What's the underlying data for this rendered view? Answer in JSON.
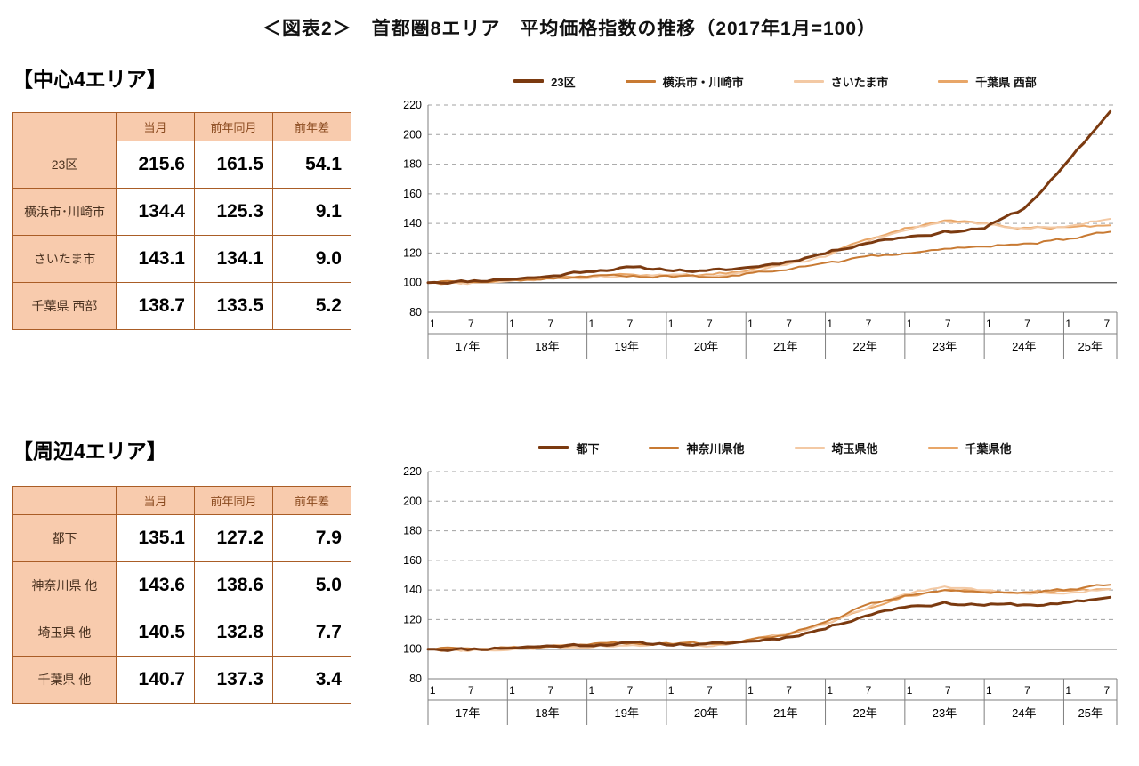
{
  "title": "＜図表2＞　首都圏8エリア　平均価格指数の推移（2017年1月=100）",
  "colors": {
    "table_fill": "#f8cbad",
    "table_border": "#aa5d26",
    "series_dark_brown": "#7b3a10",
    "series_orange": "#c87a33",
    "series_light_peach": "#f3c9a4",
    "series_medium_orange": "#e8a668"
  },
  "sections": [
    {
      "heading": "【中心4エリア】",
      "table": {
        "headers": [
          "当月",
          "前年同月",
          "前年差"
        ],
        "rows": [
          {
            "label": "23区",
            "values": [
              "215.6",
              "161.5",
              "54.1"
            ]
          },
          {
            "label": "横浜市･川崎市",
            "values": [
              "134.4",
              "125.3",
              "9.1"
            ]
          },
          {
            "label": "さいたま市",
            "values": [
              "143.1",
              "134.1",
              "9.0"
            ]
          },
          {
            "label": "千葉県 西部",
            "values": [
              "138.7",
              "133.5",
              "5.2"
            ]
          }
        ]
      }
    },
    {
      "heading": "【周辺4エリア】",
      "table": {
        "headers": [
          "当月",
          "前年同月",
          "前年差"
        ],
        "rows": [
          {
            "label": "都下",
            "values": [
              "135.1",
              "127.2",
              "7.9"
            ]
          },
          {
            "label": "神奈川県 他",
            "values": [
              "143.6",
              "138.6",
              "5.0"
            ]
          },
          {
            "label": "埼玉県 他",
            "values": [
              "140.5",
              "132.8",
              "7.7"
            ]
          },
          {
            "label": "千葉県 他",
            "values": [
              "140.7",
              "137.3",
              "3.4"
            ]
          }
        ]
      }
    }
  ],
  "chart_data": [
    {
      "type": "line",
      "title": "中心4エリア 平均価格指数の推移（2017年1月=100）",
      "ylim": [
        80,
        220
      ],
      "yticks": [
        80,
        100,
        120,
        140,
        160,
        180,
        200,
        220
      ],
      "baseline": 100,
      "grid": "dashed-horizontal",
      "legend_position": "top",
      "x_months_total": 104,
      "x_month_ticks": [
        "1",
        "7"
      ],
      "x_year_labels": [
        "17年",
        "18年",
        "19年",
        "20年",
        "21年",
        "22年",
        "23年",
        "24年",
        "25年"
      ],
      "control_months": [
        0,
        6,
        12,
        18,
        24,
        30,
        36,
        42,
        48,
        54,
        60,
        66,
        72,
        78,
        84,
        90,
        96,
        103
      ],
      "control_dates": [
        "2017-01",
        "2017-07",
        "2018-01",
        "2018-07",
        "2019-01",
        "2019-07",
        "2020-01",
        "2020-07",
        "2021-01",
        "2021-07",
        "2022-01",
        "2022-07",
        "2023-01",
        "2023-07",
        "2024-01",
        "2024-07",
        "2025-01",
        "2025-08"
      ],
      "series": [
        {
          "name": "23区",
          "color": "#7b3a10",
          "width": 3,
          "values": [
            100,
            101,
            102.5,
            104,
            108,
            110,
            109,
            107.5,
            110,
            114,
            120,
            127,
            131,
            134,
            137,
            150,
            178,
            215.6
          ]
        },
        {
          "name": "横浜市・川崎市",
          "color": "#c87a33",
          "width": 2,
          "values": [
            100,
            100,
            101.5,
            103,
            104.5,
            105,
            104.5,
            104,
            106,
            109,
            113,
            117,
            119.5,
            122,
            124,
            126,
            129,
            134.4
          ]
        },
        {
          "name": "さいたま市",
          "color": "#f3c9a4",
          "width": 2,
          "values": [
            100,
            99.5,
            101,
            102.5,
            104,
            105,
            105,
            104.5,
            107,
            111,
            118,
            128,
            136,
            141,
            140,
            136,
            138,
            143.1
          ]
        },
        {
          "name": "千葉県 西部",
          "color": "#e8a668",
          "width": 2,
          "values": [
            100,
            100,
            101.5,
            103,
            104.5,
            105.5,
            105,
            105,
            108,
            113,
            119,
            129,
            137,
            142,
            140,
            137,
            137.5,
            138.7
          ]
        }
      ]
    },
    {
      "type": "line",
      "title": "周辺4エリア 平均価格指数の推移（2017年1月=100）",
      "ylim": [
        80,
        220
      ],
      "yticks": [
        80,
        100,
        120,
        140,
        160,
        180,
        200,
        220
      ],
      "baseline": 100,
      "grid": "dashed-horizontal",
      "legend_position": "top",
      "x_months_total": 104,
      "x_month_ticks": [
        "1",
        "7"
      ],
      "x_year_labels": [
        "17年",
        "18年",
        "19年",
        "20年",
        "21年",
        "22年",
        "23年",
        "24年",
        "25年"
      ],
      "control_months": [
        0,
        6,
        12,
        18,
        24,
        30,
        36,
        42,
        48,
        54,
        60,
        66,
        72,
        78,
        84,
        90,
        96,
        103
      ],
      "control_dates": [
        "2017-01",
        "2017-07",
        "2018-01",
        "2018-07",
        "2019-01",
        "2019-07",
        "2020-01",
        "2020-07",
        "2021-01",
        "2021-07",
        "2022-01",
        "2022-07",
        "2023-01",
        "2023-07",
        "2024-01",
        "2024-07",
        "2025-01",
        "2025-08"
      ],
      "series": [
        {
          "name": "都下",
          "color": "#7b3a10",
          "width": 3,
          "values": [
            100,
            100,
            101,
            102,
            103,
            104,
            103.5,
            103,
            105,
            108,
            114,
            123,
            129,
            131,
            130,
            130,
            130.5,
            135.1
          ]
        },
        {
          "name": "神奈川県他",
          "color": "#c87a33",
          "width": 2,
          "values": [
            100,
            100,
            101,
            102,
            103.5,
            104.5,
            104,
            104,
            106,
            110,
            118,
            129,
            136,
            139,
            138,
            138,
            140,
            143.6
          ]
        },
        {
          "name": "埼玉県他",
          "color": "#f3c9a4",
          "width": 2,
          "values": [
            100,
            99,
            99.5,
            101,
            102,
            103,
            103,
            102.5,
            105,
            109,
            117,
            128,
            138,
            142,
            140,
            137,
            138,
            140.5
          ]
        },
        {
          "name": "千葉県他",
          "color": "#e8a668",
          "width": 2,
          "values": [
            100,
            99.5,
            100.5,
            102,
            103,
            104,
            103.5,
            103.5,
            106,
            110,
            117,
            127,
            136,
            140,
            139,
            138.5,
            139.5,
            140.7
          ]
        }
      ]
    }
  ]
}
